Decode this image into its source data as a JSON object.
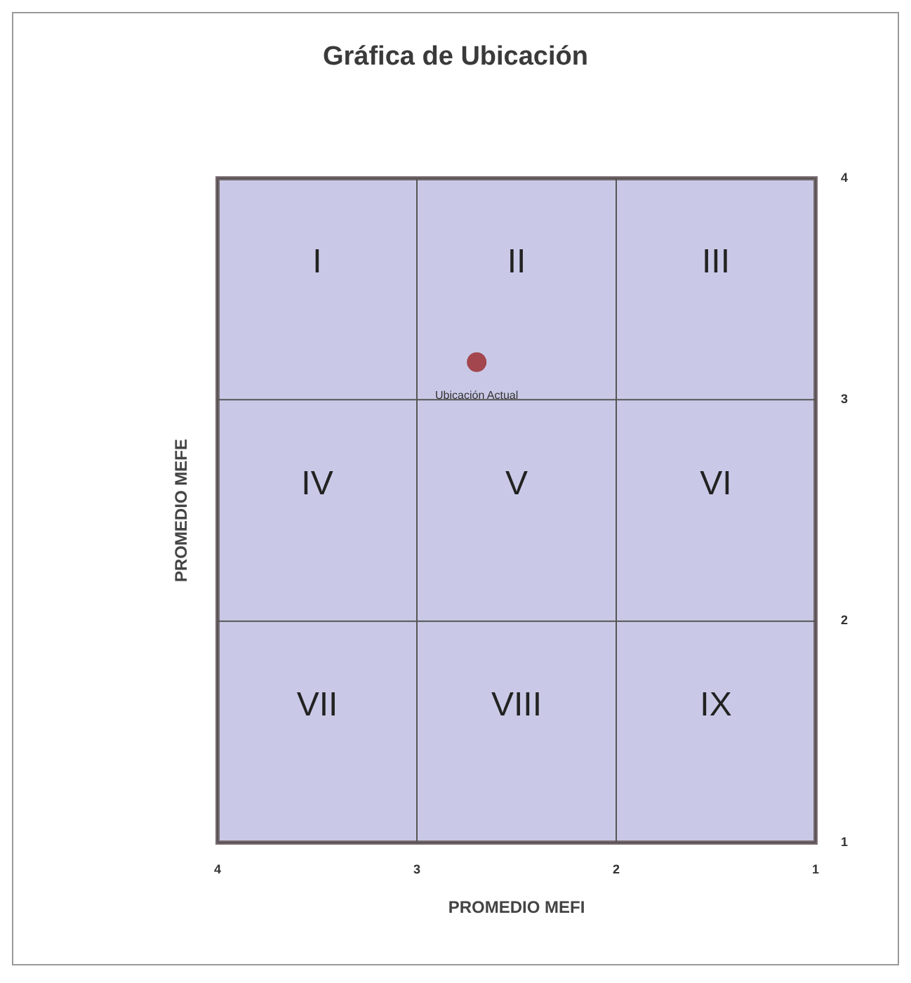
{
  "chart_data": {
    "type": "scatter",
    "title": "Gráfica de Ubicación",
    "xlabel": "PROMEDIO MEFI",
    "ylabel": "PROMEDIO MEFE",
    "x": [
      2.7
    ],
    "series": [
      {
        "color": "#a3464e",
        "values": [
          3.17
        ]
      }
    ],
    "xlim": [
      4,
      1
    ],
    "ylim": [
      1,
      4
    ],
    "xticks": [
      4,
      3,
      2,
      1
    ],
    "yticks": [
      1,
      2,
      3,
      4
    ],
    "grid": true,
    "marker": "circle",
    "annotations": [
      {
        "text": "Ubicación Actual",
        "x": 2.7,
        "y": 3.17
      },
      "I",
      "II",
      "III",
      "IV",
      "V",
      "VI",
      "VII",
      "VIII",
      "IX"
    ]
  }
}
